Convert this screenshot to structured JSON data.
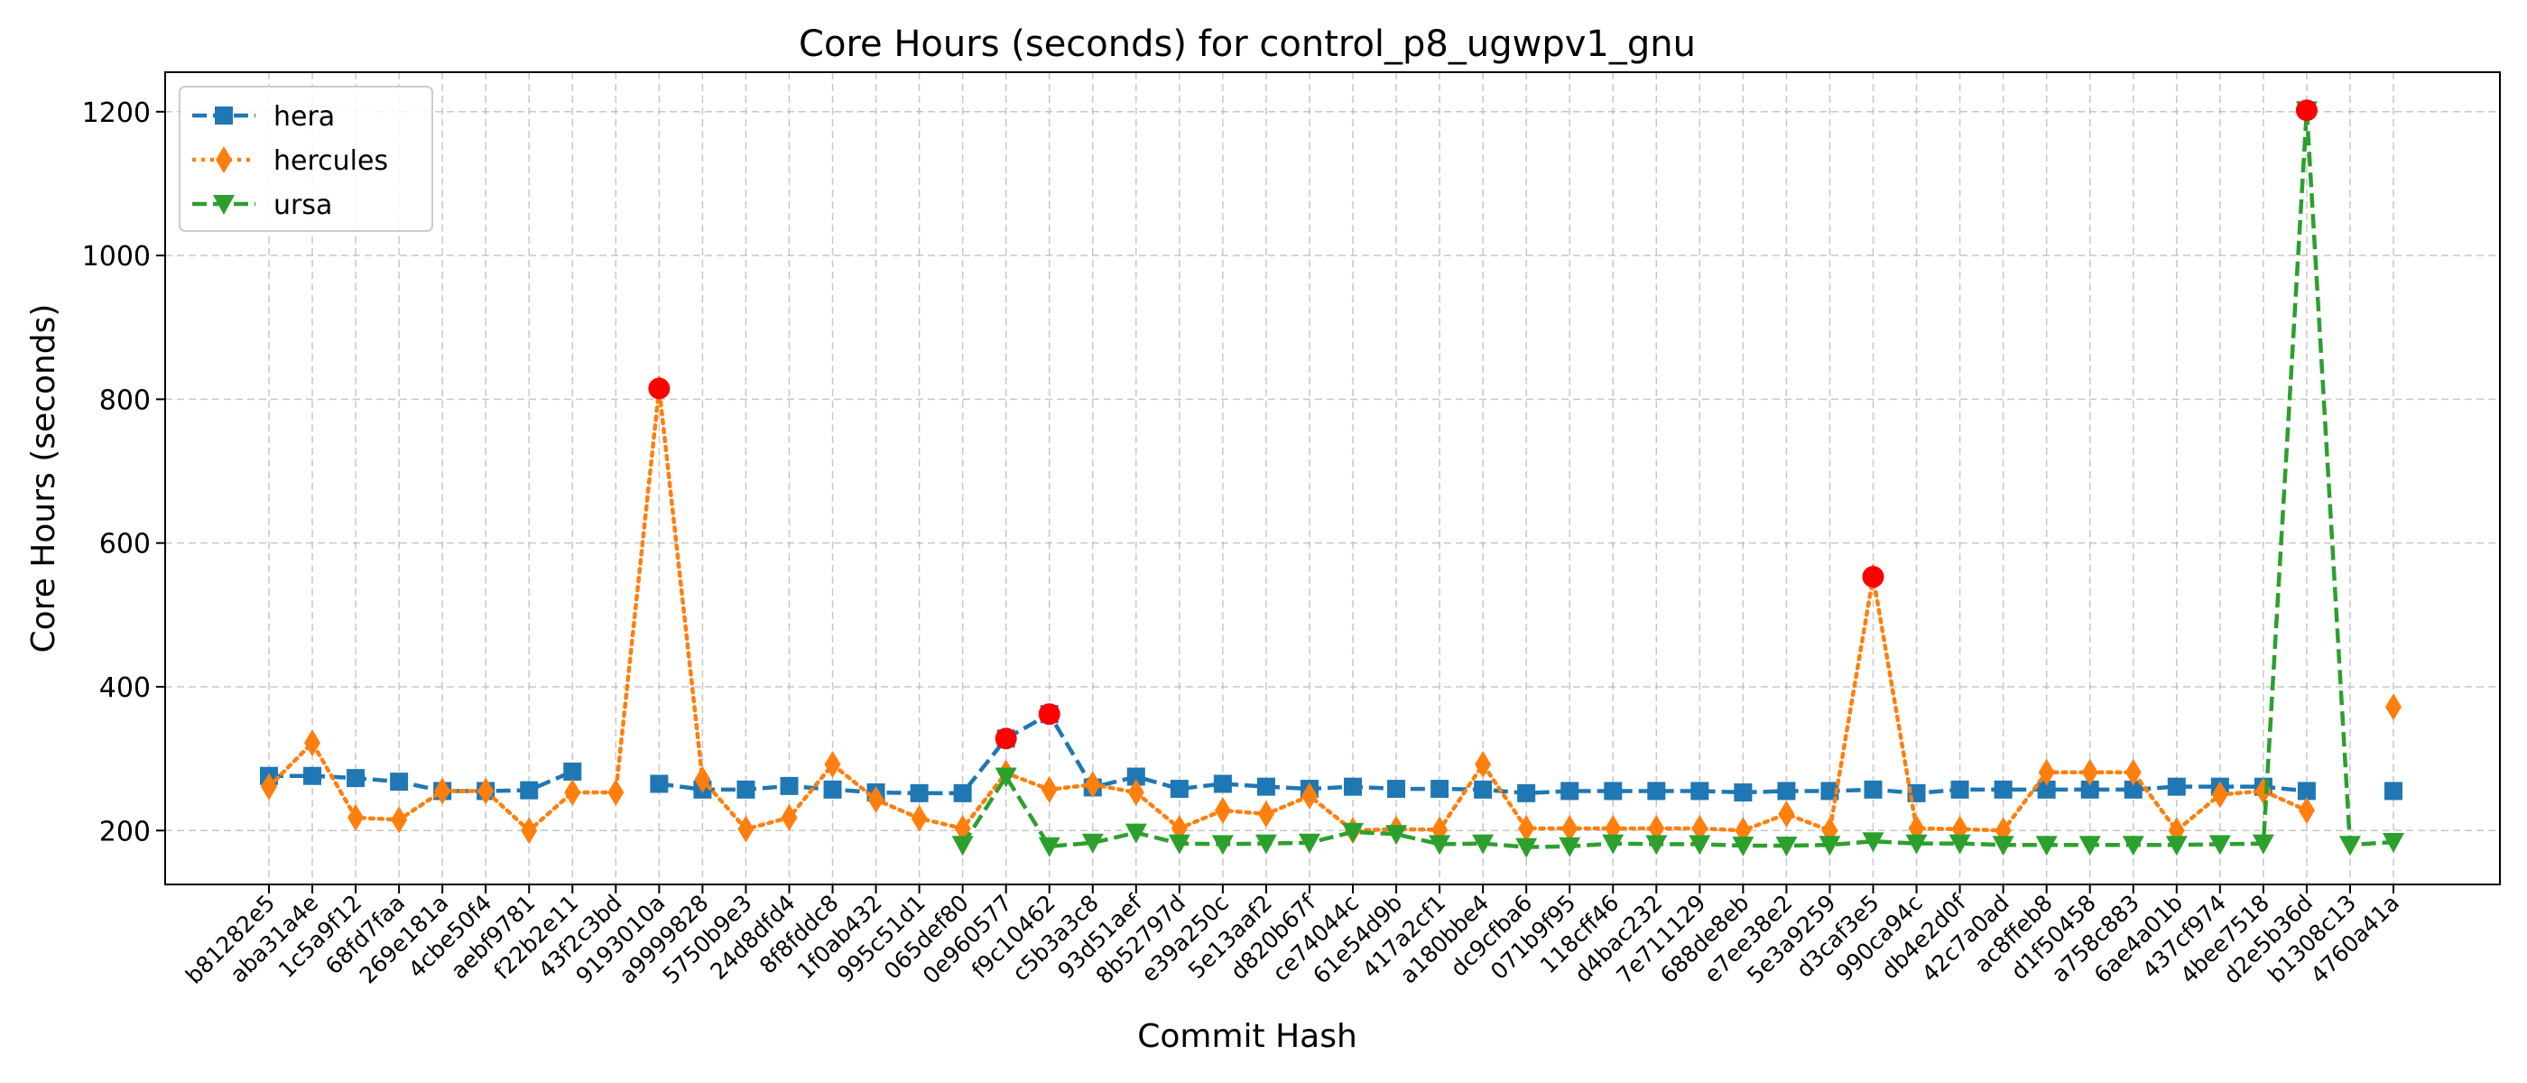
{
  "chart_data": {
    "type": "line",
    "title": "Core Hours (seconds) for control_p8_ugwpv1_gnu",
    "xlabel": "Commit Hash",
    "ylabel": "Core Hours (seconds)",
    "ylim": [
      125,
      1255
    ],
    "yticks": [
      200,
      400,
      600,
      800,
      1000,
      1200
    ],
    "grid": true,
    "legend_position": "top-left",
    "categories": [
      "b81282e5",
      "aba31a4e",
      "1c5a9f12",
      "68fd7faa",
      "269e181a",
      "4cbe50f4",
      "aebf9781",
      "f22b2e11",
      "43f2c3bd",
      "9193010a",
      "a9999828",
      "5750b9e3",
      "24d8dfd4",
      "8f8fddc8",
      "1f0ab432",
      "995c51d1",
      "065def80",
      "0e960577",
      "f9c10462",
      "c5b3a3c8",
      "93d51aef",
      "8b52797d",
      "e39a250c",
      "5e13aaf2",
      "d820b67f",
      "ce74044c",
      "61e54d9b",
      "417a2cf1",
      "a180bbe4",
      "dc9cfba6",
      "071b9f95",
      "118cff46",
      "d4bac232",
      "7e711129",
      "688de8eb",
      "e7ee38e2",
      "5e3a9259",
      "d3caf3e5",
      "990ca94c",
      "db4e2d0f",
      "42c7a0ad",
      "ac8ffeb8",
      "d1f50458",
      "a758c883",
      "6ae4a01b",
      "437cf974",
      "4bee7518",
      "d2e5b36d",
      "b1308c13",
      "4760a41a"
    ],
    "series": [
      {
        "name": "hera",
        "color": "#1f77b4",
        "marker": "square",
        "linestyle": "dashed",
        "values": [
          276,
          276,
          273,
          268,
          255,
          255,
          256,
          282,
          null,
          265,
          257,
          257,
          262,
          257,
          253,
          252,
          252,
          328,
          362,
          260,
          275,
          258,
          265,
          261,
          258,
          261,
          258,
          258,
          257,
          252,
          255,
          255,
          255,
          255,
          253,
          255,
          255,
          257,
          252,
          257,
          257,
          257,
          257,
          257,
          261,
          261,
          261,
          255,
          null,
          255
        ]
      },
      {
        "name": "hercules",
        "color": "#ff7f0e",
        "marker": "thin-diamond",
        "linestyle": "dotted",
        "values": [
          261,
          322,
          218,
          215,
          255,
          255,
          200,
          253,
          253,
          815,
          271,
          202,
          218,
          292,
          243,
          217,
          203,
          280,
          257,
          264,
          253,
          203,
          228,
          223,
          248,
          200,
          202,
          201,
          292,
          203,
          203,
          203,
          203,
          203,
          200,
          223,
          200,
          553,
          203,
          202,
          200,
          281,
          281,
          281,
          200,
          250,
          255,
          228,
          null,
          372
        ]
      },
      {
        "name": "ursa",
        "color": "#2ca02c",
        "marker": "triangle-down",
        "linestyle": "dashed",
        "values": [
          null,
          null,
          null,
          null,
          null,
          null,
          null,
          null,
          null,
          null,
          null,
          null,
          null,
          null,
          null,
          null,
          180,
          275,
          178,
          183,
          197,
          182,
          181,
          182,
          183,
          198,
          195,
          181,
          182,
          177,
          178,
          182,
          181,
          181,
          179,
          179,
          180,
          185,
          182,
          182,
          180,
          180,
          180,
          180,
          180,
          181,
          182,
          1202,
          180,
          184
        ]
      }
    ],
    "anomalies": [
      {
        "category": "9193010a",
        "value": 815
      },
      {
        "category": "0e960577",
        "value": 328
      },
      {
        "category": "f9c10462",
        "value": 362
      },
      {
        "category": "d3caf3e5",
        "value": 553
      },
      {
        "category": "d2e5b36d",
        "value": 1202
      }
    ],
    "anomaly_color": "#ff0000"
  }
}
